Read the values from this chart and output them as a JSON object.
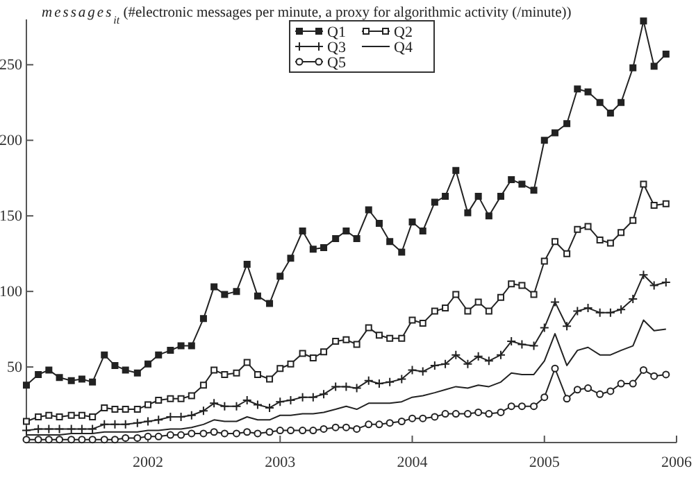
{
  "chart_data": {
    "type": "line",
    "title": "messages$_{it}$ (#electronic messages per minute, a proxy for algorithmic activity (/minute))",
    "x": [
      2001.08,
      2001.17,
      2001.25,
      2001.33,
      2001.42,
      2001.5,
      2001.58,
      2001.67,
      2001.75,
      2001.83,
      2001.92,
      2002,
      2002.08,
      2002.17,
      2002.25,
      2002.33,
      2002.42,
      2002.5,
      2002.58,
      2002.67,
      2002.75,
      2002.83,
      2002.92,
      2003,
      2003.08,
      2003.17,
      2003.25,
      2003.33,
      2003.42,
      2003.5,
      2003.58,
      2003.67,
      2003.75,
      2003.83,
      2003.92,
      2004,
      2004.08,
      2004.17,
      2004.25,
      2004.33,
      2004.42,
      2004.5,
      2004.58,
      2004.67,
      2004.75,
      2004.83,
      2004.92,
      2005,
      2005.08,
      2005.17,
      2005.25,
      2005.33,
      2005.42,
      2005.5,
      2005.58,
      2005.67,
      2005.75,
      2005.83,
      2005.92
    ],
    "series": [
      {
        "name": "Q1",
        "color": "#222222",
        "marker": "square",
        "values": [
          38,
          45,
          48,
          43,
          41,
          42,
          40,
          58,
          51,
          48,
          46,
          52,
          58,
          61,
          64,
          64,
          82,
          103,
          98,
          100,
          118,
          97,
          92,
          110,
          122,
          140,
          128,
          129,
          135,
          140,
          135,
          154,
          145,
          133,
          126,
          146,
          140,
          159,
          163,
          180,
          152,
          163,
          150,
          163,
          174,
          171,
          167,
          200,
          205,
          211,
          234,
          232,
          225,
          218,
          225,
          248,
          279,
          249,
          257
        ]
      },
      {
        "name": "Q2",
        "color": "#222222",
        "marker": "square",
        "values": [
          14,
          17,
          18,
          17,
          18,
          18,
          17,
          23,
          22,
          22,
          22,
          25,
          28,
          29,
          29,
          31,
          38,
          48,
          45,
          46,
          53,
          45,
          42,
          49,
          52,
          59,
          56,
          60,
          67,
          68,
          65,
          76,
          71,
          69,
          69,
          81,
          79,
          87,
          89,
          98,
          87,
          93,
          87,
          96,
          105,
          104,
          98,
          120,
          133,
          125,
          141,
          143,
          134,
          132,
          139,
          147,
          171,
          157,
          158
        ]
      },
      {
        "name": "Q3",
        "color": "#222222",
        "marker": "cross",
        "values": [
          8,
          9,
          9,
          9,
          9,
          9,
          9,
          12,
          12,
          12,
          13,
          14,
          15,
          17,
          17,
          18,
          21,
          26,
          24,
          24,
          28,
          25,
          23,
          27,
          28,
          30,
          30,
          32,
          37,
          37,
          36,
          41,
          39,
          40,
          42,
          48,
          47,
          51,
          52,
          58,
          52,
          57,
          54,
          58,
          67,
          65,
          64,
          76,
          93,
          77,
          87,
          89,
          86,
          86,
          88,
          95,
          111,
          104,
          106
        ]
      },
      {
        "name": "Q4",
        "color": "#222222",
        "marker": "none",
        "values": [
          5,
          5,
          5,
          5,
          6,
          6,
          6,
          7,
          7,
          7,
          7,
          8,
          8,
          9,
          9,
          10,
          12,
          15,
          14,
          14,
          17,
          15,
          15,
          18,
          18,
          19,
          19,
          20,
          22,
          24,
          22,
          26,
          26,
          26,
          27,
          30,
          31,
          33,
          35,
          37,
          36,
          38,
          37,
          40,
          46,
          45,
          45,
          54,
          72,
          51,
          61,
          63,
          58,
          58,
          61,
          64,
          81,
          74,
          75
        ]
      },
      {
        "name": "Q5",
        "color": "#222222",
        "marker": "circle",
        "values": [
          2,
          2,
          2,
          2,
          2,
          2,
          2,
          2,
          2,
          3,
          3,
          4,
          4,
          5,
          5,
          6,
          6,
          7,
          6,
          6,
          7,
          6,
          7,
          8,
          8,
          8,
          8,
          9,
          10,
          10,
          9,
          12,
          12,
          13,
          14,
          16,
          16,
          17,
          19,
          19,
          19,
          20,
          19,
          20,
          24,
          24,
          24,
          30,
          49,
          29,
          35,
          36,
          32,
          34,
          39,
          39,
          48,
          44,
          45
        ]
      }
    ],
    "xlim": [
      2001.08,
      2006
    ],
    "xticks": [
      2002,
      2003,
      2004,
      2005,
      2006
    ],
    "ylim": [
      0,
      280
    ],
    "yticks": [
      50,
      100,
      150,
      200,
      250
    ],
    "grid": false,
    "legend": "top"
  }
}
